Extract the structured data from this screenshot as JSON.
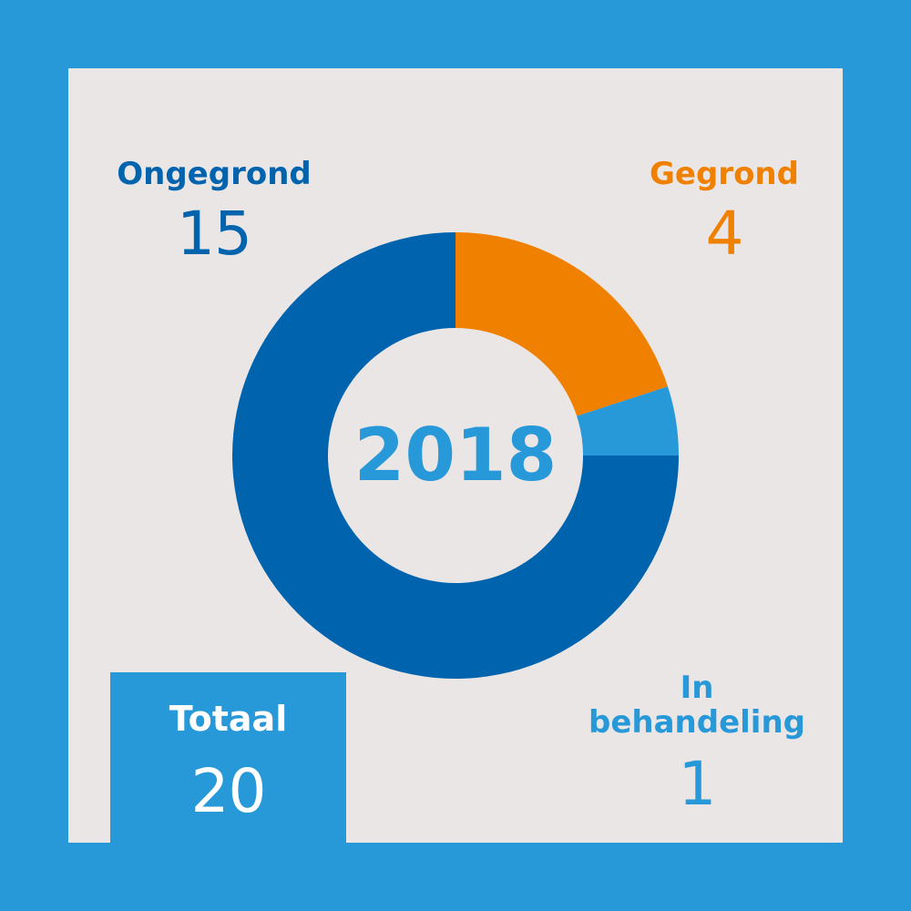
{
  "chart_data": {
    "type": "pie",
    "title": "2018",
    "categories": [
      "Gegrond",
      "In behandeling",
      "Ongegrond"
    ],
    "values": [
      4,
      1,
      15
    ],
    "colors": [
      "#f08000",
      "#2798d8",
      "#0063ad"
    ],
    "donut": true
  },
  "labels": {
    "ongegrond": "Ongegrond",
    "gegrond": "Gegrond",
    "in_behandeling_line1": "In",
    "in_behandeling_line2": "behandeling",
    "totaal": "Totaal"
  },
  "values": {
    "ongegrond": "15",
    "gegrond": "4",
    "in_behandeling": "1",
    "totaal": "20"
  },
  "colors": {
    "background": "#2798d8",
    "panel": "#ebe6e6",
    "dark_blue": "#0063ad",
    "orange": "#f08000",
    "light_blue": "#2798d8"
  }
}
